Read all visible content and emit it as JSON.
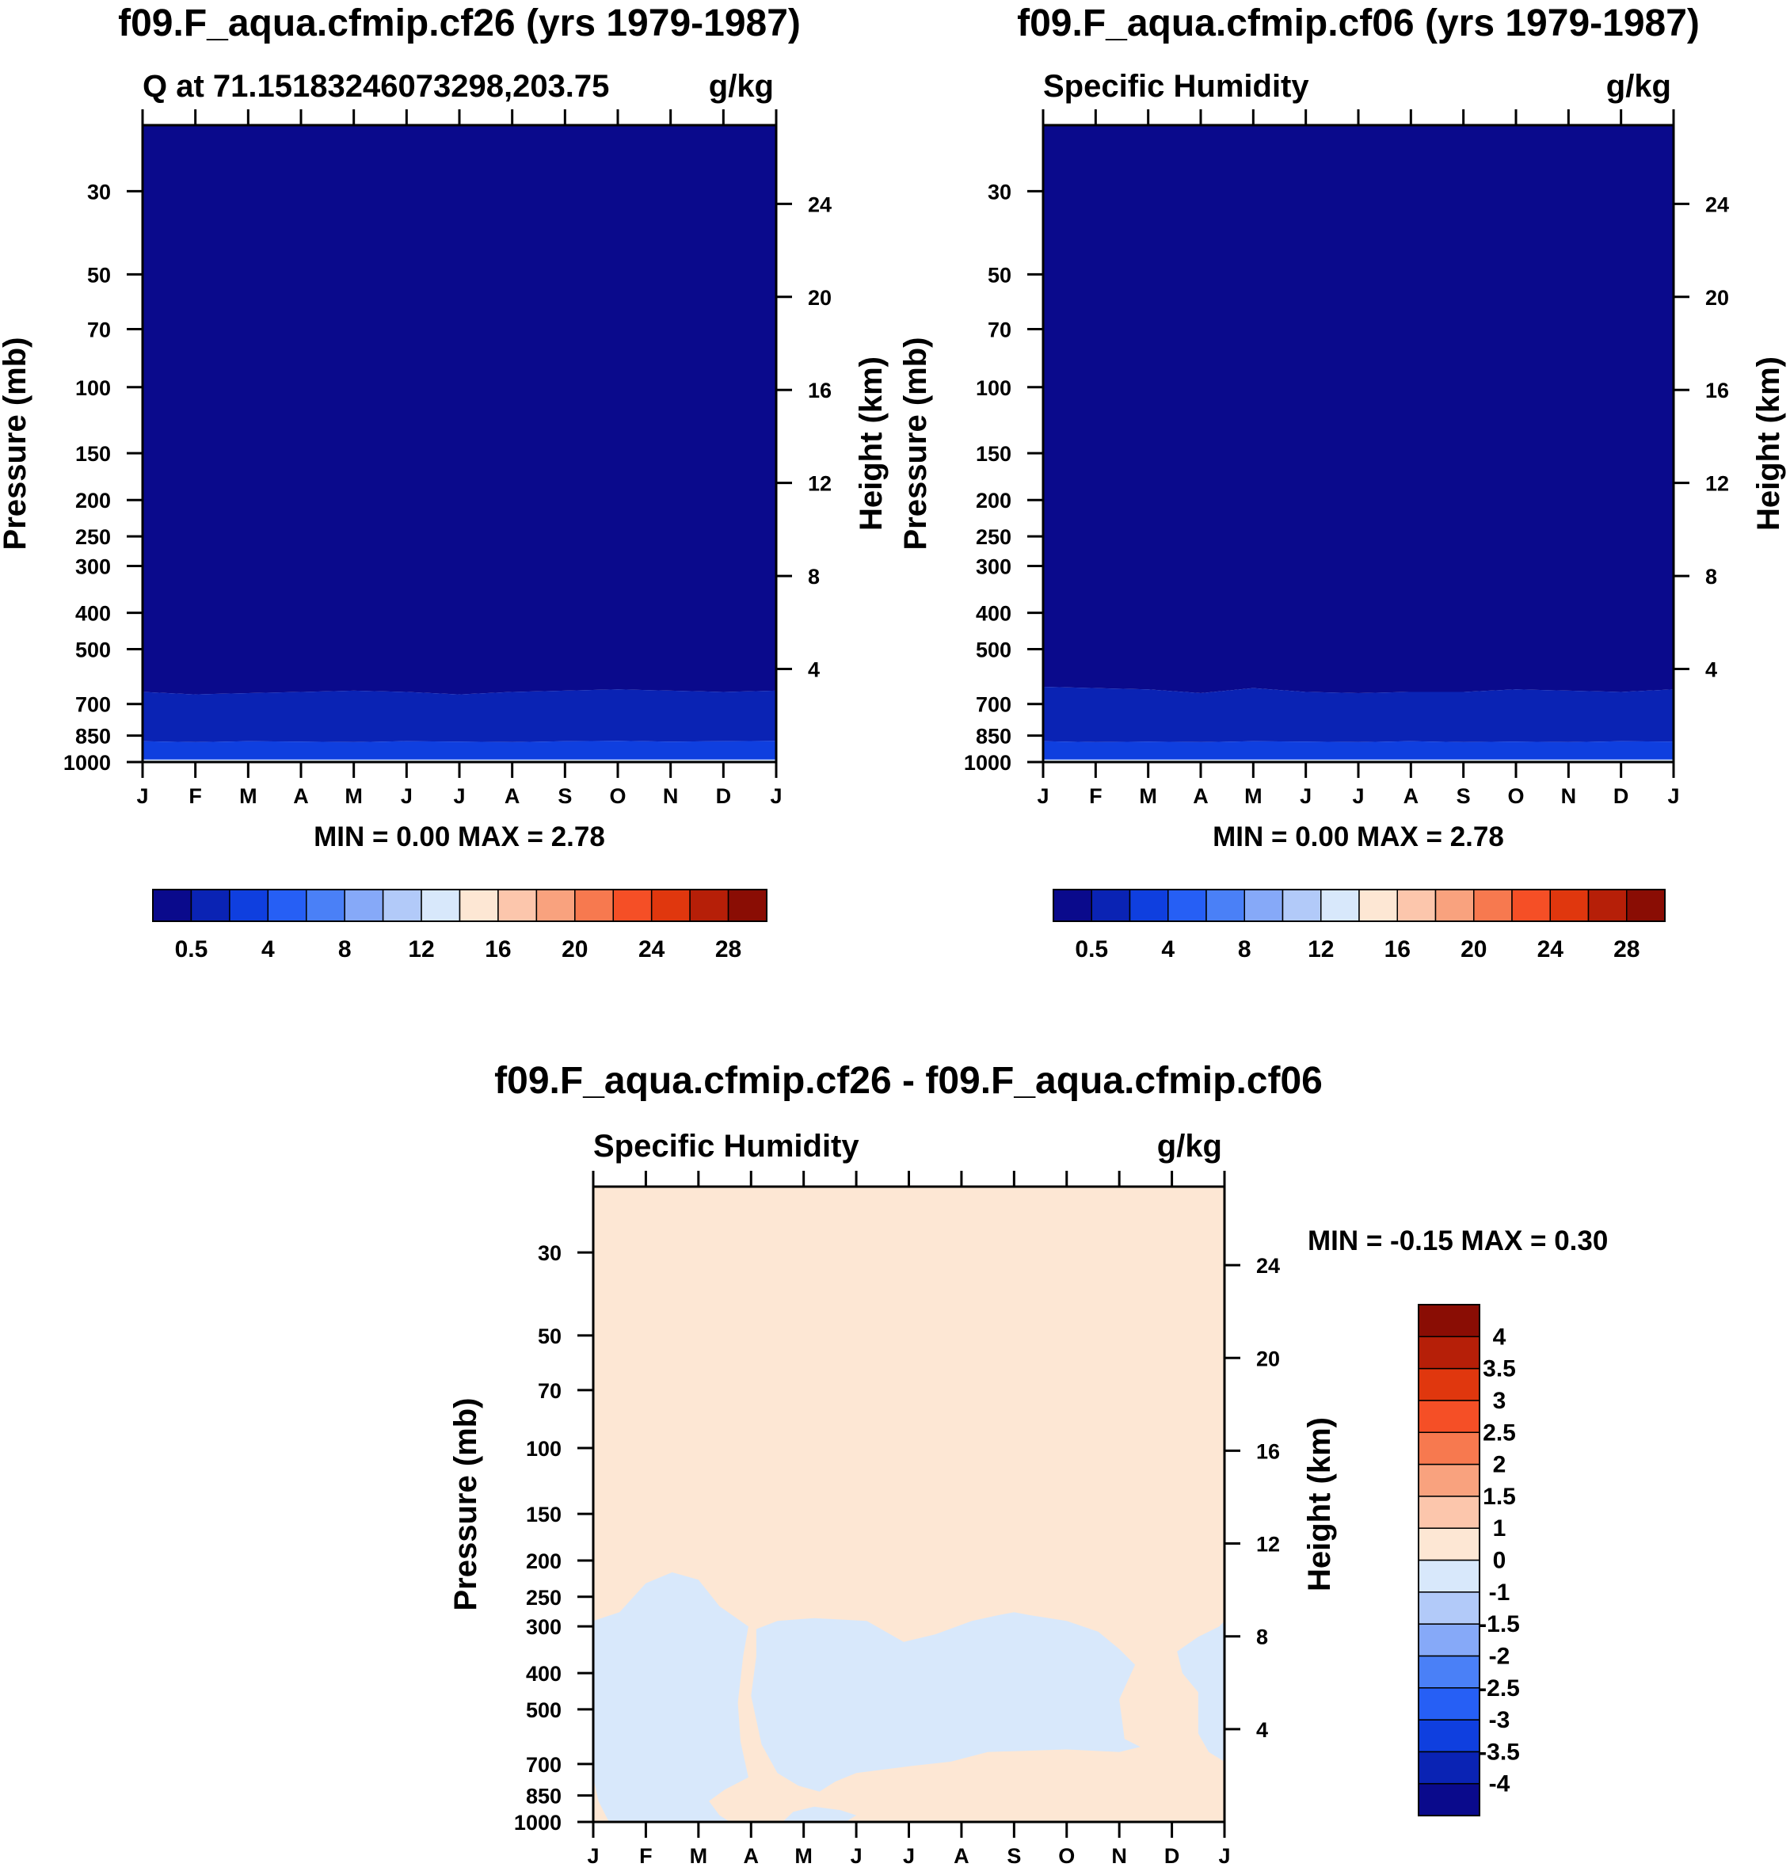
{
  "chart_data": [
    {
      "type": "heatmap",
      "title": "f09.F_aqua.cfmip.cf26 (yrs 1979-1987)",
      "subtitle_left": "Q at 71.15183246073298,203.75",
      "subtitle_right": "g/kg",
      "ylabel": "Pressure (mb)",
      "ylabel_right": "Height (km)",
      "min_max": "MIN =   0.00 MAX =   2.78",
      "x_ticks": [
        "J",
        "F",
        "M",
        "A",
        "M",
        "J",
        "J",
        "A",
        "S",
        "O",
        "N",
        "D",
        "J"
      ],
      "y_ticks": [
        "30",
        "50",
        "70",
        "100",
        "150",
        "200",
        "250",
        "300",
        "400",
        "500",
        "700",
        "850",
        "1000"
      ],
      "y_ticks_values": [
        30,
        50,
        70,
        100,
        150,
        200,
        250,
        300,
        400,
        500,
        700,
        850,
        1000
      ],
      "height_ticks": [
        "24",
        "20",
        "16",
        "12",
        "8",
        "4"
      ],
      "height_ticks_values": [
        24,
        20,
        16,
        12,
        8,
        4
      ],
      "ylim": [
        20,
        1000
      ],
      "colorbar": {
        "colors": [
          "#0a0a8c",
          "#0a23b4",
          "#0f3fdf",
          "#265ff5",
          "#4a80f7",
          "#86a9f8",
          "#b2caf9",
          "#d8e8fb",
          "#fde7d4",
          "#fcc6ac",
          "#f9a27e",
          "#f7794f",
          "#f54f26",
          "#e0370e",
          "#b61f08",
          "#8a0d04"
        ],
        "labels": [
          "0.5",
          "4",
          "8",
          "12",
          "16",
          "20",
          "24",
          "28"
        ],
        "label_boundaries": [
          1,
          3,
          5,
          7,
          9,
          11,
          13,
          15
        ]
      },
      "fields": [
        {
          "level": "0-0.5",
          "color": "#0a0a8c",
          "from_p": 20,
          "boundary_p": [
            650,
            660,
            655,
            650,
            645,
            650,
            660,
            650,
            645,
            640,
            645,
            650,
            645
          ]
        },
        {
          "level": "0.5-1",
          "color": "#0a23b4",
          "boundary_p": [
            880,
            885,
            880,
            882,
            885,
            880,
            882,
            885,
            880,
            878,
            882,
            880,
            878
          ]
        },
        {
          "level": "1-2",
          "color": "#0f3fdf",
          "boundary_p": [
            985,
            985,
            985,
            985,
            985,
            985,
            985,
            985,
            985,
            985,
            985,
            985,
            985
          ]
        },
        {
          "level": "2-3",
          "color": "#d8e8fb",
          "to_p": 1000
        }
      ]
    },
    {
      "type": "heatmap",
      "title": "f09.F_aqua.cfmip.cf06 (yrs 1979-1987)",
      "subtitle_left": "Specific Humidity",
      "subtitle_right": "g/kg",
      "ylabel": "Pressure (mb)",
      "ylabel_right": "Height (km)",
      "min_max": "MIN =   0.00 MAX =   2.78",
      "x_ticks": [
        "J",
        "F",
        "M",
        "A",
        "M",
        "J",
        "J",
        "A",
        "S",
        "O",
        "N",
        "D",
        "J"
      ],
      "y_ticks": [
        "30",
        "50",
        "70",
        "100",
        "150",
        "200",
        "250",
        "300",
        "400",
        "500",
        "700",
        "850",
        "1000"
      ],
      "y_ticks_values": [
        30,
        50,
        70,
        100,
        150,
        200,
        250,
        300,
        400,
        500,
        700,
        850,
        1000
      ],
      "height_ticks": [
        "24",
        "20",
        "16",
        "12",
        "8",
        "4"
      ],
      "height_ticks_values": [
        24,
        20,
        16,
        12,
        8,
        4
      ],
      "ylim": [
        20,
        1000
      ],
      "colorbar": {
        "colors": [
          "#0a0a8c",
          "#0a23b4",
          "#0f3fdf",
          "#265ff5",
          "#4a80f7",
          "#86a9f8",
          "#b2caf9",
          "#d8e8fb",
          "#fde7d4",
          "#fcc6ac",
          "#f9a27e",
          "#f7794f",
          "#f54f26",
          "#e0370e",
          "#b61f08",
          "#8a0d04"
        ],
        "labels": [
          "0.5",
          "4",
          "8",
          "12",
          "16",
          "20",
          "24",
          "28"
        ],
        "label_boundaries": [
          1,
          3,
          5,
          7,
          9,
          11,
          13,
          15
        ]
      },
      "fields": [
        {
          "level": "0-0.5",
          "color": "#0a0a8c",
          "from_p": 20,
          "boundary_p": [
            630,
            635,
            640,
            655,
            635,
            650,
            655,
            650,
            650,
            640,
            645,
            650,
            640
          ]
        },
        {
          "level": "0.5-1",
          "color": "#0a23b4",
          "boundary_p": [
            880,
            885,
            882,
            885,
            880,
            882,
            885,
            880,
            885,
            882,
            885,
            880,
            882
          ]
        },
        {
          "level": "1-2",
          "color": "#0f3fdf",
          "boundary_p": [
            985,
            985,
            985,
            985,
            985,
            985,
            985,
            985,
            985,
            985,
            985,
            985,
            985
          ]
        },
        {
          "level": "2-3",
          "color": "#d8e8fb",
          "to_p": 1000
        }
      ]
    },
    {
      "type": "heatmap",
      "title": "f09.F_aqua.cfmip.cf26 - f09.F_aqua.cfmip.cf06",
      "subtitle_left": "Specific Humidity",
      "subtitle_right": "g/kg",
      "ylabel": "Pressure (mb)",
      "ylabel_right": "Height (km)",
      "min_max": "MIN =  -0.15 MAX =   0.30",
      "x_ticks": [
        "J",
        "F",
        "M",
        "A",
        "M",
        "J",
        "J",
        "A",
        "S",
        "O",
        "N",
        "D",
        "J"
      ],
      "y_ticks": [
        "30",
        "50",
        "70",
        "100",
        "150",
        "200",
        "250",
        "300",
        "400",
        "500",
        "700",
        "850",
        "1000"
      ],
      "y_ticks_values": [
        30,
        50,
        70,
        100,
        150,
        200,
        250,
        300,
        400,
        500,
        700,
        850,
        1000
      ],
      "height_ticks": [
        "24",
        "20",
        "16",
        "12",
        "8",
        "4"
      ],
      "height_ticks_values": [
        24,
        20,
        16,
        12,
        8,
        4
      ],
      "ylim": [
        20,
        1000
      ],
      "background": {
        "level": "0 to 1",
        "color": "#fde7d4"
      },
      "negative_regions": {
        "level": "-1 to 0",
        "color": "#d8e8fb",
        "polygons": [
          [
            [
              0,
              290
            ],
            [
              0.5,
              275
            ],
            [
              1,
              230
            ],
            [
              1.5,
              215
            ],
            [
              2.0,
              225
            ],
            [
              2.4,
              265
            ],
            [
              2.95,
              300
            ],
            [
              2.85,
              360
            ],
            [
              2.75,
              480
            ],
            [
              2.8,
              610
            ],
            [
              2.95,
              760
            ],
            [
              2.5,
              820
            ],
            [
              2.2,
              880
            ],
            [
              2.4,
              960
            ],
            [
              2.6,
              1000
            ],
            [
              0.3,
              1000
            ],
            [
              0.1,
              880
            ],
            [
              0,
              760
            ]
          ],
          [
            [
              3.1,
              305
            ],
            [
              3.5,
              290
            ],
            [
              4.2,
              285
            ],
            [
              5.2,
              290
            ],
            [
              5.9,
              330
            ],
            [
              6.5,
              315
            ],
            [
              7.2,
              290
            ],
            [
              7.7,
              280
            ],
            [
              8.0,
              275
            ],
            [
              8.3,
              280
            ],
            [
              9.0,
              290
            ],
            [
              9.6,
              310
            ],
            [
              10.0,
              345
            ],
            [
              10.3,
              380
            ],
            [
              10.0,
              470
            ],
            [
              10.1,
              600
            ],
            [
              10.4,
              630
            ],
            [
              10.0,
              650
            ],
            [
              9.0,
              640
            ],
            [
              7.5,
              650
            ],
            [
              6.8,
              690
            ],
            [
              6.0,
              710
            ],
            [
              5.0,
              740
            ],
            [
              4.6,
              780
            ],
            [
              4.3,
              830
            ],
            [
              3.9,
              800
            ],
            [
              3.5,
              740
            ],
            [
              3.2,
              620
            ],
            [
              3.0,
              460
            ],
            [
              3.1,
              360
            ]
          ],
          [
            [
              3.6,
              1000
            ],
            [
              3.8,
              940
            ],
            [
              4.2,
              910
            ],
            [
              4.7,
              930
            ],
            [
              5.0,
              960
            ],
            [
              4.8,
              1000
            ]
          ],
          [
            [
              11.1,
              350
            ],
            [
              11.5,
              320
            ],
            [
              11.9,
              300
            ],
            [
              12,
              290
            ],
            [
              12,
              690
            ],
            [
              11.7,
              650
            ],
            [
              11.5,
              580
            ],
            [
              11.5,
              450
            ],
            [
              11.2,
              400
            ]
          ]
        ]
      },
      "colorbar": {
        "colors": [
          "#0a0a8c",
          "#0a23b4",
          "#0f3fdf",
          "#265ff5",
          "#4a80f7",
          "#86a9f8",
          "#b2caf9",
          "#d8e8fb",
          "#fde7d4",
          "#fcc6ac",
          "#f9a27e",
          "#f7794f",
          "#f54f26",
          "#e0370e",
          "#b61f08",
          "#8a0d04"
        ],
        "labels": [
          "-4",
          "-3.5",
          "-3",
          "-2.5",
          "-2",
          "-1.5",
          "-1",
          "0",
          "1",
          "1.5",
          "2",
          "2.5",
          "3",
          "3.5",
          "4"
        ]
      }
    }
  ]
}
